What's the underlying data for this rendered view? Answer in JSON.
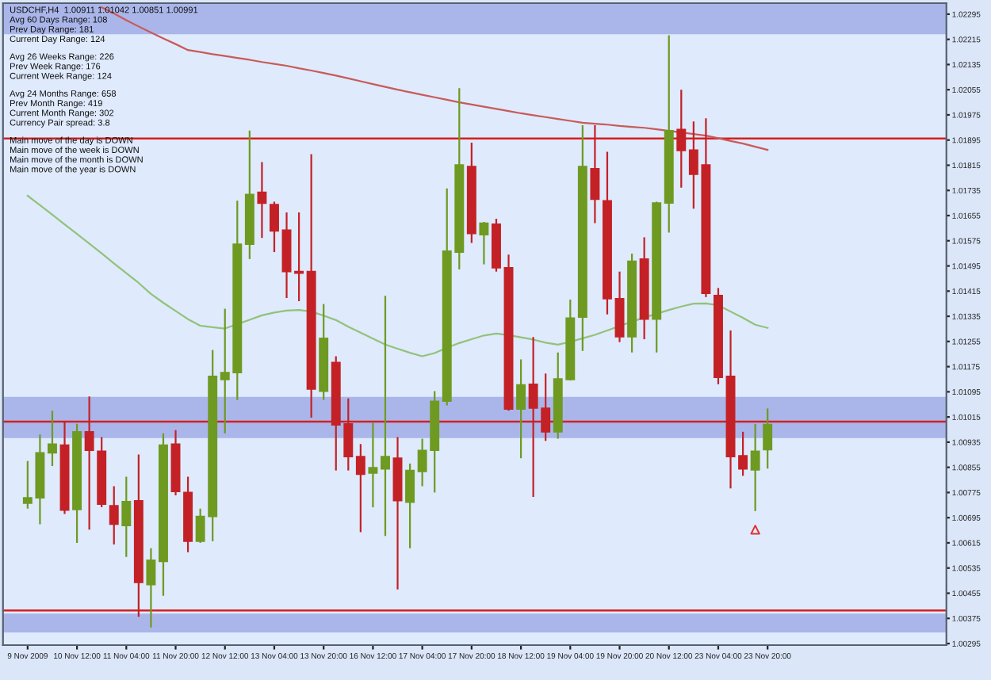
{
  "chart_data": {
    "type": "candlestick",
    "title": "USDCHF,H4  1.00911 1.01042 1.00851 1.00991",
    "categories": [
      "9 Nov 2009",
      null,
      null,
      null,
      "10 Nov 12:00",
      null,
      null,
      null,
      "11 Nov 04:00",
      null,
      null,
      null,
      "11 Nov 20:00",
      null,
      null,
      null,
      "12 Nov 12:00",
      null,
      null,
      null,
      "13 Nov 04:00",
      null,
      null,
      null,
      "13 Nov 20:00",
      null,
      null,
      null,
      "16 Nov 12:00",
      null,
      null,
      null,
      "17 Nov 04:00",
      null,
      null,
      null,
      "17 Nov 20:00",
      null,
      null,
      null,
      "18 Nov 12:00",
      null,
      null,
      null,
      "19 Nov 04:00",
      null,
      null,
      null,
      "19 Nov 20:00",
      null,
      null,
      null,
      "20 Nov 12:00",
      null,
      null,
      null,
      "23 Nov 04:00",
      null,
      null,
      null,
      "23 Nov 20:00"
    ],
    "ohlc": [
      [
        1.00741,
        1.00875,
        1.00724,
        1.00758
      ],
      [
        1.00758,
        1.00959,
        1.00674,
        1.00901
      ],
      [
        1.00901,
        1.01035,
        1.00859,
        1.00929
      ],
      [
        1.00926,
        1.01001,
        1.00707,
        1.00719
      ],
      [
        1.00721,
        1.00993,
        1.00615,
        1.00968
      ],
      [
        1.00968,
        1.0108,
        1.00657,
        1.00909
      ],
      [
        1.00906,
        1.00951,
        1.00728,
        1.00738
      ],
      [
        1.00733,
        1.00795,
        1.0061,
        1.00674
      ],
      [
        1.0067,
        1.00825,
        1.0057,
        1.00746
      ],
      [
        1.00749,
        1.00896,
        1.0038,
        1.00489
      ],
      [
        1.00482,
        1.00598,
        1.00346,
        1.0056
      ],
      [
        1.00556,
        1.00963,
        1.00447,
        1.00926
      ],
      [
        1.00929,
        1.00973,
        1.00766,
        1.00778
      ],
      [
        1.00775,
        1.00825,
        1.00585,
        1.0062
      ],
      [
        1.0062,
        1.00724,
        1.00615,
        1.00699
      ],
      [
        1.00699,
        1.01228,
        1.0062,
        1.01144
      ],
      [
        1.01134,
        1.01359,
        1.00963,
        1.01156
      ],
      [
        1.01156,
        1.01702,
        1.01069,
        1.01564
      ],
      [
        1.01564,
        1.01925,
        1.01517,
        1.01722
      ],
      [
        1.01729,
        1.01825,
        1.01584,
        1.01694
      ],
      [
        1.0169,
        1.01699,
        1.01539,
        1.01606
      ],
      [
        1.01609,
        1.01665,
        1.01393,
        1.01477
      ],
      [
        1.01477,
        1.01665,
        1.01383,
        1.01472
      ],
      [
        1.01477,
        1.0185,
        1.01013,
        1.01104
      ],
      [
        1.01097,
        1.01374,
        1.01069,
        1.01265
      ],
      [
        1.01188,
        1.01208,
        1.00845,
        1.0099
      ],
      [
        1.00993,
        1.01074,
        1.00845,
        1.00889
      ],
      [
        1.00889,
        1.00929,
        1.00649,
        1.00833
      ],
      [
        1.00837,
        1.00996,
        1.00728,
        1.00854
      ],
      [
        1.0085,
        1.014,
        1.00637,
        1.00889
      ],
      [
        1.00884,
        1.00951,
        1.00467,
        1.00749
      ],
      [
        1.00744,
        1.00867,
        1.00598,
        1.00845
      ],
      [
        1.00842,
        1.00946,
        1.00795,
        1.00909
      ],
      [
        1.00909,
        1.01097,
        1.00775,
        1.01065
      ],
      [
        1.01065,
        1.01741,
        1.01052,
        1.01542
      ],
      [
        1.01539,
        1.0206,
        1.01484,
        1.01816
      ],
      [
        1.01811,
        1.01887,
        1.01568,
        1.01598
      ],
      [
        1.01594,
        1.01635,
        1.015,
        1.01631
      ],
      [
        1.01628,
        1.01645,
        1.01477,
        1.01489
      ],
      [
        1.01489,
        1.01531,
        1.01035,
        1.0104
      ],
      [
        1.0104,
        1.01198,
        1.00884,
        1.01117
      ],
      [
        1.01119,
        1.01269,
        1.00761,
        1.01043
      ],
      [
        1.01043,
        1.01153,
        1.00939,
        1.00968
      ],
      [
        1.00968,
        1.0122,
        1.00946,
        1.01136
      ],
      [
        1.01134,
        1.01388,
        1.01131,
        1.01329
      ],
      [
        1.01332,
        1.01942,
        1.01225,
        1.01811
      ],
      [
        1.01804,
        1.01942,
        1.01631,
        1.01707
      ],
      [
        1.01702,
        1.01858,
        1.01341,
        1.01391
      ],
      [
        1.01391,
        1.01477,
        1.01253,
        1.0127
      ],
      [
        1.0127,
        1.01534,
        1.0122,
        1.0151
      ],
      [
        1.01517,
        1.01586,
        1.01262,
        1.01326
      ],
      [
        1.01326,
        1.01699,
        1.0122,
        1.01695
      ],
      [
        1.01695,
        1.02228,
        1.01601,
        1.01925
      ],
      [
        1.01929,
        1.02055,
        1.01744,
        1.01862
      ],
      [
        1.01863,
        1.01954,
        1.01677,
        1.01786
      ],
      [
        1.01816,
        1.01964,
        1.01396,
        1.01408
      ],
      [
        1.01401,
        1.01425,
        1.01119,
        1.01141
      ],
      [
        1.01144,
        1.0129,
        1.00788,
        1.00889
      ],
      [
        1.00892,
        1.00968,
        1.00828,
        1.0085
      ],
      [
        1.00847,
        1.00993,
        1.00716,
        1.00906
      ],
      [
        1.00911,
        1.01042,
        1.00851,
        1.00991
      ]
    ],
    "colors": [
      "#6e9a22",
      "#6e9a22",
      "#6e9a22",
      "#c42127",
      "#6e9a22",
      "#c42127",
      "#c42127",
      "#c42127",
      "#6e9a22",
      "#c42127",
      "#6e9a22",
      "#6e9a22",
      "#c42127",
      "#c42127",
      "#6e9a22",
      "#6e9a22",
      "#6e9a22",
      "#6e9a22",
      "#6e9a22",
      "#c42127",
      "#c42127",
      "#c42127",
      "#c42127",
      "#c42127",
      "#6e9a22",
      "#c42127",
      "#c42127",
      "#c42127",
      "#6e9a22",
      "#6e9a22",
      "#c42127",
      "#6e9a22",
      "#6e9a22",
      "#6e9a22",
      "#6e9a22",
      "#6e9a22",
      "#c42127",
      "#6e9a22",
      "#c42127",
      "#c42127",
      "#6e9a22",
      "#c42127",
      "#c42127",
      "#6e9a22",
      "#6e9a22",
      "#6e9a22",
      "#c42127",
      "#c42127",
      "#c42127",
      "#6e9a22",
      "#c42127",
      "#6e9a22",
      "#6e9a22",
      "#c42127",
      "#c42127",
      "#c42127",
      "#c42127",
      "#c42127",
      "#c42127",
      "#6e9a22",
      "#6e9a22"
    ],
    "series": [
      {
        "type": "line",
        "color": "#c85a5a",
        "values": [
          null,
          null,
          null,
          null,
          null,
          null,
          1.02317,
          1.02297,
          1.02276,
          1.02256,
          1.02237,
          1.02218,
          1.022,
          1.02181,
          1.02175,
          1.02168,
          1.02162,
          1.02156,
          1.0215,
          1.02143,
          1.02137,
          1.02131,
          1.02123,
          1.02116,
          1.02108,
          1.021,
          1.02091,
          1.02082,
          1.02073,
          1.02064,
          1.02055,
          1.02047,
          1.02039,
          1.02031,
          1.02023,
          1.02015,
          1.02008,
          1.02001,
          1.01994,
          1.01987,
          1.0198,
          1.01974,
          1.01968,
          1.01962,
          1.01956,
          1.0195,
          1.01947,
          1.01944,
          1.0194,
          1.01937,
          1.01934,
          1.01929,
          1.01924,
          1.01919,
          1.01914,
          1.01909,
          1.01901,
          1.01892,
          1.01884,
          1.01874,
          1.01864
        ]
      },
      {
        "type": "line",
        "color": "#92c27a",
        "values": [
          1.01718,
          1.01688,
          1.01658,
          1.01627,
          1.01597,
          1.01566,
          1.01535,
          1.01503,
          1.01472,
          1.01441,
          1.01406,
          1.01378,
          1.01352,
          1.01326,
          1.01305,
          1.013,
          1.01296,
          1.0131,
          1.01324,
          1.01338,
          1.01347,
          1.01353,
          1.01355,
          1.0135,
          1.01337,
          1.01323,
          1.01302,
          1.01283,
          1.01264,
          1.01245,
          1.01232,
          1.01219,
          1.01208,
          1.01218,
          1.01235,
          1.0125,
          1.01262,
          1.01274,
          1.0128,
          1.01275,
          1.01268,
          1.01261,
          1.01251,
          1.01245,
          1.01254,
          1.01265,
          1.01276,
          1.0129,
          1.01304,
          1.01318,
          1.01331,
          1.01343,
          1.01355,
          1.01366,
          1.01375,
          1.01376,
          1.0137,
          1.0135,
          1.0133,
          1.01308,
          1.01298
        ]
      },
      {
        "type": "scatter",
        "color": "#e03030",
        "marker": "triangle",
        "values": [
          null,
          null,
          null,
          null,
          null,
          null,
          null,
          null,
          null,
          null,
          null,
          null,
          null,
          null,
          null,
          null,
          null,
          null,
          null,
          null,
          null,
          null,
          null,
          null,
          null,
          null,
          null,
          null,
          null,
          null,
          null,
          null,
          null,
          null,
          null,
          null,
          null,
          null,
          null,
          null,
          null,
          null,
          null,
          null,
          null,
          null,
          null,
          null,
          null,
          null,
          null,
          null,
          null,
          null,
          null,
          null,
          null,
          null,
          null,
          1.00657,
          null
        ]
      }
    ],
    "ylim": [
      1.0029,
      1.0233
    ],
    "yticks": [
      1.02295,
      1.02215,
      1.02135,
      1.02055,
      1.01975,
      1.01895,
      1.01815,
      1.01735,
      1.01655,
      1.01575,
      1.01495,
      1.01415,
      1.01335,
      1.01255,
      1.01175,
      1.01095,
      1.01015,
      1.00935,
      1.00855,
      1.00775,
      1.00695,
      1.00615,
      1.00535,
      1.00455,
      1.00375,
      1.00295
    ],
    "ref_lines": [
      {
        "axis": "y",
        "value": 1.019,
        "color": "#d42020"
      },
      {
        "axis": "y",
        "value": 1.01,
        "color": "#d42020"
      },
      {
        "axis": "y",
        "value": 1.004,
        "color": "#d42020"
      }
    ],
    "bands": [
      {
        "axis": "y",
        "from": 1.02231,
        "to": 1.0233,
        "color": "#aab6ea"
      },
      {
        "axis": "y",
        "from": 1.00948,
        "to": 1.01079,
        "color": "#aab6ea"
      },
      {
        "axis": "y",
        "from": 1.0033,
        "to": 1.0039,
        "color": "#aab6ea"
      }
    ],
    "annotations": [
      "Avg 60 Days Range: 108",
      "Prev Day Range: 181",
      "Current Day Range: 124",
      "Avg 26 Weeks Range: 226",
      "Prev Week Range: 176",
      "Current Week Range: 124",
      "Avg 24 Months Range: 658",
      "Prev Month Range: 419",
      "Current Month Range: 302",
      "Currency Pair spread: 3.8",
      "Main move of the day is DOWN",
      "Main move of the week is DOWN",
      "Main move of the month is DOWN",
      "Main move of the year is DOWN"
    ]
  }
}
